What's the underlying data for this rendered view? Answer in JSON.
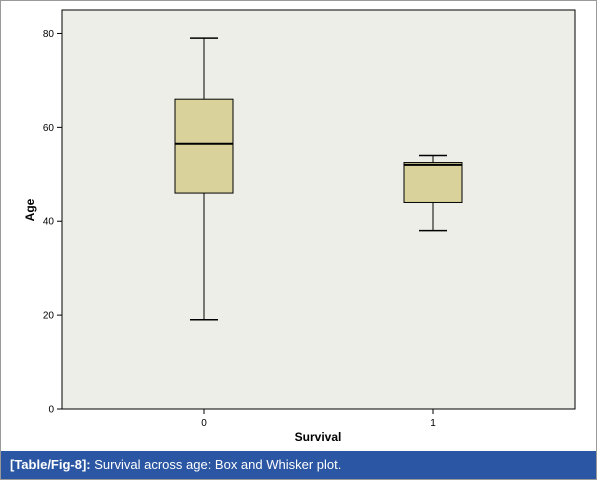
{
  "chart_data": {
    "type": "boxplot",
    "xlabel": "Survival",
    "ylabel": "Age",
    "ylim": [
      0,
      85
    ],
    "yticks": [
      0,
      20,
      40,
      60,
      80
    ],
    "categories": [
      "0",
      "1"
    ],
    "boxes": [
      {
        "category": "0",
        "min": 19,
        "q1": 46,
        "median": 56.5,
        "q3": 66,
        "max": 79
      },
      {
        "category": "1",
        "min": 38,
        "q1": 44,
        "median": 52,
        "q3": 52.5,
        "max": 54
      }
    ],
    "box_fill": "#d9d39b",
    "plot_background": "#eeeee8",
    "grid": false
  },
  "caption": {
    "tag": "[Table/Fig-8]:",
    "text": " Survival across age: Box and Whisker plot."
  },
  "colors": {
    "caption_background": "#2b56a3",
    "caption_text": "#ffffff"
  }
}
